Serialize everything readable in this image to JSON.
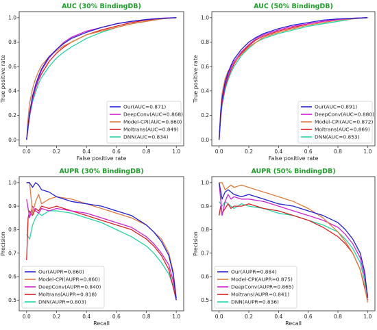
{
  "chart_data": [
    {
      "type": "line",
      "title": "AUC (30% BindingDB)",
      "xlabel": "False positive rate",
      "ylabel": "True positive rate",
      "xlim": [
        0,
        1
      ],
      "ylim": [
        0,
        1
      ],
      "xticks": [
        "0.0",
        "0.2",
        "0.4",
        "0.6",
        "0.8",
        "1.0"
      ],
      "yticks": [
        "0.0",
        "0.2",
        "0.4",
        "0.6",
        "0.8",
        "1.0"
      ],
      "legend_position": "lower-right",
      "series": [
        {
          "name": "Our(AUC=0.871)",
          "color": "#1f1fd6",
          "x": [
            0,
            0.01,
            0.02,
            0.04,
            0.06,
            0.08,
            0.1,
            0.15,
            0.2,
            0.25,
            0.3,
            0.4,
            0.5,
            0.6,
            0.7,
            0.8,
            0.9,
            1.0
          ],
          "y": [
            0,
            0.12,
            0.22,
            0.36,
            0.45,
            0.52,
            0.58,
            0.68,
            0.74,
            0.79,
            0.83,
            0.88,
            0.92,
            0.95,
            0.97,
            0.985,
            0.995,
            1.0
          ]
        },
        {
          "name": "DeepConv(AUC=0.868)",
          "color": "#d21fd2",
          "x": [
            0,
            0.01,
            0.02,
            0.04,
            0.06,
            0.08,
            0.1,
            0.15,
            0.2,
            0.25,
            0.3,
            0.4,
            0.5,
            0.6,
            0.7,
            0.8,
            0.9,
            1.0
          ],
          "y": [
            0,
            0.1,
            0.2,
            0.34,
            0.43,
            0.5,
            0.57,
            0.67,
            0.74,
            0.8,
            0.84,
            0.89,
            0.92,
            0.95,
            0.97,
            0.985,
            0.995,
            1.0
          ]
        },
        {
          "name": "Model-CPI(AUC=0.860)",
          "color": "#e07a3a",
          "x": [
            0,
            0.01,
            0.02,
            0.04,
            0.06,
            0.08,
            0.1,
            0.15,
            0.2,
            0.25,
            0.3,
            0.4,
            0.5,
            0.6,
            0.7,
            0.8,
            0.9,
            1.0
          ],
          "y": [
            0,
            0.18,
            0.3,
            0.42,
            0.5,
            0.56,
            0.61,
            0.68,
            0.73,
            0.77,
            0.8,
            0.86,
            0.89,
            0.92,
            0.95,
            0.97,
            0.99,
            1.0
          ]
        },
        {
          "name": "Moltrans(AUC=0.849)",
          "color": "#e01e1e",
          "x": [
            0,
            0.01,
            0.02,
            0.04,
            0.06,
            0.08,
            0.1,
            0.15,
            0.2,
            0.25,
            0.3,
            0.4,
            0.5,
            0.6,
            0.7,
            0.8,
            0.9,
            1.0
          ],
          "y": [
            0,
            0.1,
            0.2,
            0.33,
            0.42,
            0.49,
            0.54,
            0.64,
            0.71,
            0.76,
            0.8,
            0.86,
            0.9,
            0.93,
            0.96,
            0.98,
            0.99,
            1.0
          ]
        },
        {
          "name": "DNN(AUC=0.834)",
          "color": "#1fd6a6",
          "x": [
            0,
            0.01,
            0.02,
            0.04,
            0.06,
            0.08,
            0.1,
            0.15,
            0.2,
            0.25,
            0.3,
            0.4,
            0.5,
            0.6,
            0.7,
            0.8,
            0.9,
            1.0
          ],
          "y": [
            0,
            0.1,
            0.19,
            0.31,
            0.39,
            0.46,
            0.51,
            0.6,
            0.67,
            0.72,
            0.76,
            0.83,
            0.88,
            0.92,
            0.95,
            0.97,
            0.99,
            1.0
          ]
        }
      ]
    },
    {
      "type": "line",
      "title": "AUC (50% BindingDB)",
      "xlabel": "False positive rate",
      "ylabel": "True positive rate",
      "xlim": [
        0,
        1
      ],
      "ylim": [
        0,
        1
      ],
      "xticks": [
        "0.0",
        "0.2",
        "0.4",
        "0.6",
        "0.8",
        "1.0"
      ],
      "yticks": [
        "0.0",
        "0.2",
        "0.4",
        "0.6",
        "0.8",
        "1.0"
      ],
      "legend_position": "lower-right",
      "series": [
        {
          "name": "Our(AUC=0.891)",
          "color": "#1f1fd6",
          "x": [
            0,
            0.01,
            0.02,
            0.04,
            0.06,
            0.08,
            0.1,
            0.15,
            0.2,
            0.25,
            0.3,
            0.4,
            0.5,
            0.6,
            0.7,
            0.8,
            0.9,
            1.0
          ],
          "y": [
            0,
            0.22,
            0.34,
            0.47,
            0.55,
            0.61,
            0.66,
            0.74,
            0.8,
            0.84,
            0.87,
            0.91,
            0.94,
            0.96,
            0.98,
            0.99,
            0.995,
            1.0
          ]
        },
        {
          "name": "DeepConv(AUC=0.880)",
          "color": "#d21fd2",
          "x": [
            0,
            0.01,
            0.02,
            0.04,
            0.06,
            0.08,
            0.1,
            0.15,
            0.2,
            0.25,
            0.3,
            0.4,
            0.5,
            0.6,
            0.7,
            0.8,
            0.9,
            1.0
          ],
          "y": [
            0,
            0.2,
            0.32,
            0.45,
            0.53,
            0.59,
            0.64,
            0.72,
            0.78,
            0.83,
            0.86,
            0.9,
            0.93,
            0.95,
            0.97,
            0.985,
            0.995,
            1.0
          ]
        },
        {
          "name": "Model-CPI(AUC=0.872)",
          "color": "#e07a3a",
          "x": [
            0,
            0.01,
            0.02,
            0.04,
            0.06,
            0.08,
            0.1,
            0.15,
            0.2,
            0.25,
            0.3,
            0.4,
            0.5,
            0.6,
            0.7,
            0.8,
            0.9,
            1.0
          ],
          "y": [
            0,
            0.24,
            0.38,
            0.5,
            0.56,
            0.6,
            0.63,
            0.7,
            0.76,
            0.8,
            0.84,
            0.88,
            0.91,
            0.94,
            0.96,
            0.98,
            0.99,
            1.0
          ]
        },
        {
          "name": "Moltrans(AUC=0.869)",
          "color": "#e01e1e",
          "x": [
            0,
            0.01,
            0.02,
            0.04,
            0.06,
            0.08,
            0.1,
            0.15,
            0.2,
            0.25,
            0.3,
            0.4,
            0.5,
            0.6,
            0.7,
            0.8,
            0.9,
            1.0
          ],
          "y": [
            0,
            0.18,
            0.3,
            0.43,
            0.51,
            0.57,
            0.62,
            0.71,
            0.77,
            0.82,
            0.85,
            0.89,
            0.92,
            0.95,
            0.97,
            0.985,
            0.995,
            1.0
          ]
        },
        {
          "name": "DNN(AUC=0.853)",
          "color": "#1fd6a6",
          "x": [
            0,
            0.01,
            0.02,
            0.04,
            0.06,
            0.08,
            0.1,
            0.15,
            0.2,
            0.25,
            0.3,
            0.4,
            0.5,
            0.6,
            0.7,
            0.8,
            0.9,
            1.0
          ],
          "y": [
            0,
            0.17,
            0.28,
            0.41,
            0.49,
            0.55,
            0.6,
            0.69,
            0.75,
            0.8,
            0.83,
            0.87,
            0.9,
            0.93,
            0.95,
            0.97,
            0.99,
            1.0
          ]
        }
      ]
    },
    {
      "type": "line",
      "title": "AUPR (30% BindingDB)",
      "xlabel": "Recall",
      "ylabel": "Precision",
      "xlim": [
        0,
        1
      ],
      "ylim": [
        0.48,
        1.0
      ],
      "xticks": [
        "0.0",
        "0.2",
        "0.4",
        "0.6",
        "0.8",
        "1.0"
      ],
      "yticks": [
        "0.5",
        "0.6",
        "0.7",
        "0.8",
        "0.9",
        "1.0"
      ],
      "legend_position": "lower-left",
      "series": [
        {
          "name": "Our(AUPR=0.860)",
          "color": "#1f1fd6",
          "x": [
            0,
            0.02,
            0.04,
            0.06,
            0.08,
            0.1,
            0.15,
            0.2,
            0.3,
            0.4,
            0.5,
            0.6,
            0.7,
            0.8,
            0.85,
            0.9,
            0.95,
            0.98,
            1.0
          ],
          "y": [
            1.0,
            1.0,
            0.98,
            1.0,
            0.99,
            0.97,
            0.96,
            0.94,
            0.92,
            0.91,
            0.9,
            0.88,
            0.86,
            0.82,
            0.79,
            0.75,
            0.69,
            0.61,
            0.5
          ]
        },
        {
          "name": "Model-CPI(AUPR=0.860)",
          "color": "#e07a3a",
          "x": [
            0,
            0.02,
            0.04,
            0.06,
            0.08,
            0.1,
            0.15,
            0.2,
            0.3,
            0.4,
            0.5,
            0.6,
            0.7,
            0.8,
            0.85,
            0.9,
            0.95,
            0.98,
            1.0
          ],
          "y": [
            1.0,
            1.0,
            0.87,
            0.92,
            0.95,
            0.91,
            0.93,
            0.94,
            0.93,
            0.91,
            0.89,
            0.87,
            0.85,
            0.82,
            0.79,
            0.76,
            0.7,
            0.62,
            0.51
          ]
        },
        {
          "name": "DeepConv(AUPR=0.840)",
          "color": "#d21fd2",
          "x": [
            0,
            0.02,
            0.04,
            0.06,
            0.08,
            0.1,
            0.15,
            0.2,
            0.3,
            0.4,
            0.5,
            0.6,
            0.7,
            0.8,
            0.85,
            0.9,
            0.95,
            0.98,
            1.0
          ],
          "y": [
            0.93,
            0.85,
            0.9,
            0.88,
            0.87,
            0.89,
            0.88,
            0.89,
            0.88,
            0.87,
            0.85,
            0.83,
            0.81,
            0.77,
            0.74,
            0.7,
            0.65,
            0.58,
            0.51
          ]
        },
        {
          "name": "Moltrans(AUPR=0.818)",
          "color": "#e01e1e",
          "x": [
            0,
            0.01,
            0.02,
            0.04,
            0.06,
            0.08,
            0.1,
            0.15,
            0.2,
            0.3,
            0.4,
            0.5,
            0.6,
            0.7,
            0.8,
            0.85,
            0.9,
            0.95,
            1.0
          ],
          "y": [
            0.67,
            0.85,
            0.88,
            0.86,
            0.89,
            0.88,
            0.9,
            0.89,
            0.9,
            0.88,
            0.86,
            0.84,
            0.82,
            0.8,
            0.76,
            0.73,
            0.69,
            0.63,
            0.5
          ]
        },
        {
          "name": "DNN(AUPR=0.803)",
          "color": "#1fd6a6",
          "x": [
            0,
            0.02,
            0.04,
            0.06,
            0.08,
            0.1,
            0.15,
            0.2,
            0.3,
            0.4,
            0.5,
            0.6,
            0.7,
            0.8,
            0.85,
            0.9,
            0.95,
            0.98,
            1.0
          ],
          "y": [
            0.78,
            0.76,
            0.82,
            0.85,
            0.87,
            0.86,
            0.88,
            0.88,
            0.87,
            0.85,
            0.83,
            0.8,
            0.77,
            0.73,
            0.7,
            0.66,
            0.61,
            0.56,
            0.5
          ]
        }
      ]
    },
    {
      "type": "line",
      "title": "AUPR (50% BindingDB)",
      "xlabel": "Recall",
      "ylabel": "Precision",
      "xlim": [
        0,
        1
      ],
      "ylim": [
        0.48,
        1.0
      ],
      "xticks": [
        "0.0",
        "0.2",
        "0.4",
        "0.6",
        "0.8",
        "1.0"
      ],
      "yticks": [
        "0.5",
        "0.6",
        "0.7",
        "0.8",
        "0.9",
        "1.0"
      ],
      "legend_position": "lower-left",
      "series": [
        {
          "name": "Our(AUPR=0.884)",
          "color": "#1f1fd6",
          "x": [
            0,
            0.02,
            0.04,
            0.06,
            0.08,
            0.1,
            0.15,
            0.2,
            0.3,
            0.4,
            0.5,
            0.6,
            0.7,
            0.8,
            0.85,
            0.9,
            0.95,
            0.98,
            1.0
          ],
          "y": [
            1.0,
            0.93,
            0.96,
            0.97,
            0.96,
            0.95,
            0.94,
            0.95,
            0.93,
            0.91,
            0.9,
            0.88,
            0.86,
            0.83,
            0.8,
            0.76,
            0.7,
            0.62,
            0.51
          ]
        },
        {
          "name": "Model-CPI(AUPR=0.875)",
          "color": "#e07a3a",
          "x": [
            0,
            0.02,
            0.04,
            0.06,
            0.08,
            0.1,
            0.15,
            0.2,
            0.3,
            0.4,
            0.5,
            0.6,
            0.7,
            0.8,
            0.85,
            0.9,
            0.95,
            0.98,
            1.0
          ],
          "y": [
            1.0,
            1.0,
            0.97,
            0.98,
            0.99,
            0.98,
            0.99,
            0.98,
            0.96,
            0.94,
            0.92,
            0.89,
            0.85,
            0.79,
            0.75,
            0.7,
            0.63,
            0.56,
            0.49
          ]
        },
        {
          "name": "DeepConv(AUPR=0.865)",
          "color": "#d21fd2",
          "x": [
            0,
            0.02,
            0.04,
            0.06,
            0.08,
            0.1,
            0.15,
            0.2,
            0.3,
            0.4,
            0.5,
            0.6,
            0.7,
            0.8,
            0.85,
            0.9,
            0.95,
            0.98,
            1.0
          ],
          "y": [
            1.0,
            0.86,
            0.92,
            0.95,
            0.93,
            0.94,
            0.93,
            0.93,
            0.92,
            0.9,
            0.88,
            0.86,
            0.84,
            0.81,
            0.78,
            0.74,
            0.68,
            0.6,
            0.52
          ]
        },
        {
          "name": "Moltrans(AUPR=0.841)",
          "color": "#e01e1e",
          "x": [
            0,
            0.01,
            0.02,
            0.04,
            0.06,
            0.08,
            0.1,
            0.15,
            0.2,
            0.3,
            0.4,
            0.5,
            0.6,
            0.7,
            0.8,
            0.85,
            0.9,
            0.95,
            1.0
          ],
          "y": [
            0.86,
            0.9,
            0.87,
            0.89,
            0.91,
            0.89,
            0.9,
            0.9,
            0.91,
            0.89,
            0.88,
            0.86,
            0.84,
            0.81,
            0.77,
            0.74,
            0.7,
            0.63,
            0.5
          ]
        },
        {
          "name": "DNN(AUPR=0.836)",
          "color": "#1fd6a6",
          "x": [
            0,
            0.02,
            0.04,
            0.06,
            0.08,
            0.1,
            0.15,
            0.2,
            0.3,
            0.4,
            0.5,
            0.6,
            0.7,
            0.8,
            0.85,
            0.9,
            0.95,
            0.98,
            1.0
          ],
          "y": [
            0.92,
            0.9,
            0.92,
            0.91,
            0.9,
            0.89,
            0.91,
            0.9,
            0.89,
            0.87,
            0.86,
            0.84,
            0.82,
            0.79,
            0.76,
            0.72,
            0.66,
            0.58,
            0.52
          ]
        }
      ]
    }
  ]
}
